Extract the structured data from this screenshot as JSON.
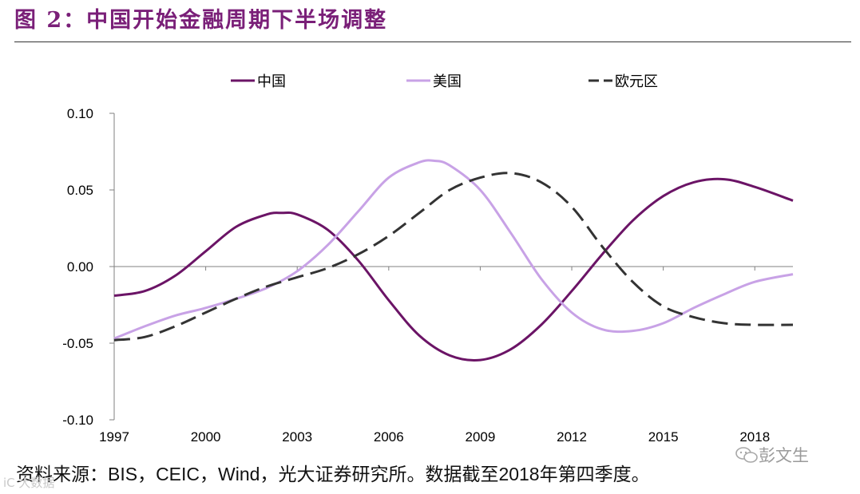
{
  "figure": {
    "title": "图 2：中国开始金融周期下半场调整"
  },
  "footer": {
    "prefix": "资料来源：",
    "sources": "BIS，CEIC，Wind，",
    "suffix_a": "光大证券研究所。数据截至",
    "year": "2018",
    "suffix_b": "年第四季度。"
  },
  "watermark": {
    "name": "彭文生",
    "icon": "wechat-icon",
    "bottom_left": "iC 大数据"
  },
  "colors": {
    "title": "#7a1f78",
    "china": "#6b1466",
    "us": "#c8a2e6",
    "euro": "#333333"
  },
  "chart_data": {
    "type": "line",
    "title": "",
    "xlabel": "",
    "ylabel": "",
    "xlim": [
      1997,
      2019.25
    ],
    "ylim": [
      -0.1,
      0.1
    ],
    "xticks": [
      1997,
      2000,
      2003,
      2006,
      2009,
      2012,
      2015,
      2018
    ],
    "yticks": [
      0.1,
      0.05,
      0.0,
      -0.05,
      -0.1
    ],
    "ytick_labels": [
      "0.10",
      "0.05",
      "0.00",
      "-0.05",
      "-0.10"
    ],
    "grid": false,
    "legend_position": "top",
    "series": [
      {
        "name": "中国",
        "style": "solid",
        "color": "#6b1466",
        "points": [
          [
            1997,
            -0.019
          ],
          [
            1998,
            -0.016
          ],
          [
            1999,
            -0.006
          ],
          [
            2000,
            0.01
          ],
          [
            2001,
            0.026
          ],
          [
            2002,
            0.034
          ],
          [
            2002.5,
            0.035
          ],
          [
            2003,
            0.034
          ],
          [
            2004,
            0.024
          ],
          [
            2005,
            0.004
          ],
          [
            2006,
            -0.022
          ],
          [
            2007,
            -0.045
          ],
          [
            2008,
            -0.058
          ],
          [
            2009,
            -0.061
          ],
          [
            2010,
            -0.054
          ],
          [
            2011,
            -0.038
          ],
          [
            2012,
            -0.016
          ],
          [
            2013,
            0.008
          ],
          [
            2014,
            0.03
          ],
          [
            2015,
            0.046
          ],
          [
            2016,
            0.055
          ],
          [
            2017,
            0.057
          ],
          [
            2018,
            0.052
          ],
          [
            2019.25,
            0.043
          ]
        ]
      },
      {
        "name": "美国",
        "style": "solid",
        "color": "#c8a2e6",
        "points": [
          [
            1997,
            -0.047
          ],
          [
            1998,
            -0.039
          ],
          [
            1999,
            -0.032
          ],
          [
            2000,
            -0.027
          ],
          [
            2001,
            -0.021
          ],
          [
            2002,
            -0.014
          ],
          [
            2003,
            -0.003
          ],
          [
            2004,
            0.014
          ],
          [
            2005,
            0.036
          ],
          [
            2006,
            0.058
          ],
          [
            2007,
            0.068
          ],
          [
            2007.5,
            0.069
          ],
          [
            2008,
            0.066
          ],
          [
            2009,
            0.05
          ],
          [
            2010,
            0.022
          ],
          [
            2011,
            -0.008
          ],
          [
            2012,
            -0.03
          ],
          [
            2013,
            -0.041
          ],
          [
            2014,
            -0.042
          ],
          [
            2015,
            -0.037
          ],
          [
            2016,
            -0.027
          ],
          [
            2017,
            -0.018
          ],
          [
            2018,
            -0.01
          ],
          [
            2019.25,
            -0.005
          ]
        ]
      },
      {
        "name": "欧元区",
        "style": "dashed",
        "color": "#333333",
        "points": [
          [
            1997,
            -0.048
          ],
          [
            1998,
            -0.046
          ],
          [
            1999,
            -0.039
          ],
          [
            2000,
            -0.03
          ],
          [
            2001,
            -0.021
          ],
          [
            2002,
            -0.013
          ],
          [
            2003,
            -0.007
          ],
          [
            2004,
            -0.001
          ],
          [
            2005,
            0.008
          ],
          [
            2006,
            0.02
          ],
          [
            2007,
            0.035
          ],
          [
            2008,
            0.05
          ],
          [
            2009,
            0.058
          ],
          [
            2010,
            0.061
          ],
          [
            2011,
            0.055
          ],
          [
            2012,
            0.039
          ],
          [
            2013,
            0.013
          ],
          [
            2014,
            -0.01
          ],
          [
            2015,
            -0.026
          ],
          [
            2016,
            -0.033
          ],
          [
            2017,
            -0.037
          ],
          [
            2018,
            -0.038
          ],
          [
            2019.25,
            -0.038
          ]
        ]
      }
    ]
  }
}
